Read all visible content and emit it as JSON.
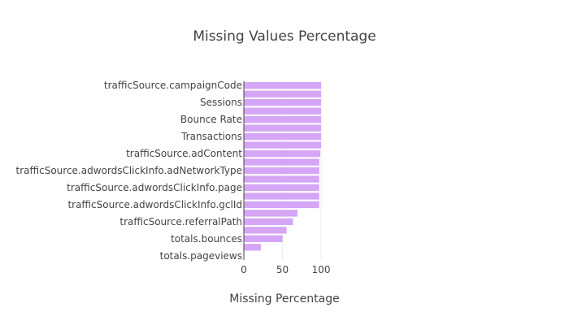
{
  "chart_data": {
    "type": "bar",
    "orientation": "horizontal",
    "title": "Missing Values Percentage",
    "xlabel": "Missing Percentage",
    "ylabel": "",
    "xlim": [
      0,
      100
    ],
    "x_ticks": [
      0,
      50,
      100
    ],
    "grid": true,
    "bar_color": "#d5a6f5",
    "categories": [
      "trafficSource.campaignCode",
      "",
      "Sessions",
      "",
      "Bounce Rate",
      "",
      "Transactions",
      "",
      "trafficSource.adContent",
      "",
      "trafficSource.adwordsClickInfo.adNetworkType",
      "",
      "trafficSource.adwordsClickInfo.page",
      "",
      "trafficSource.adwordsClickInfo.gclId",
      "",
      "trafficSource.referralPath",
      "",
      "totals.bounces",
      "",
      "totals.pageviews"
    ],
    "values": [
      100,
      100,
      100,
      100,
      100,
      100,
      100,
      100,
      98.9,
      97.6,
      97.6,
      97.6,
      97.6,
      97.6,
      97.6,
      69.5,
      63.6,
      55.3,
      50.1,
      22.0,
      0.01
    ]
  }
}
